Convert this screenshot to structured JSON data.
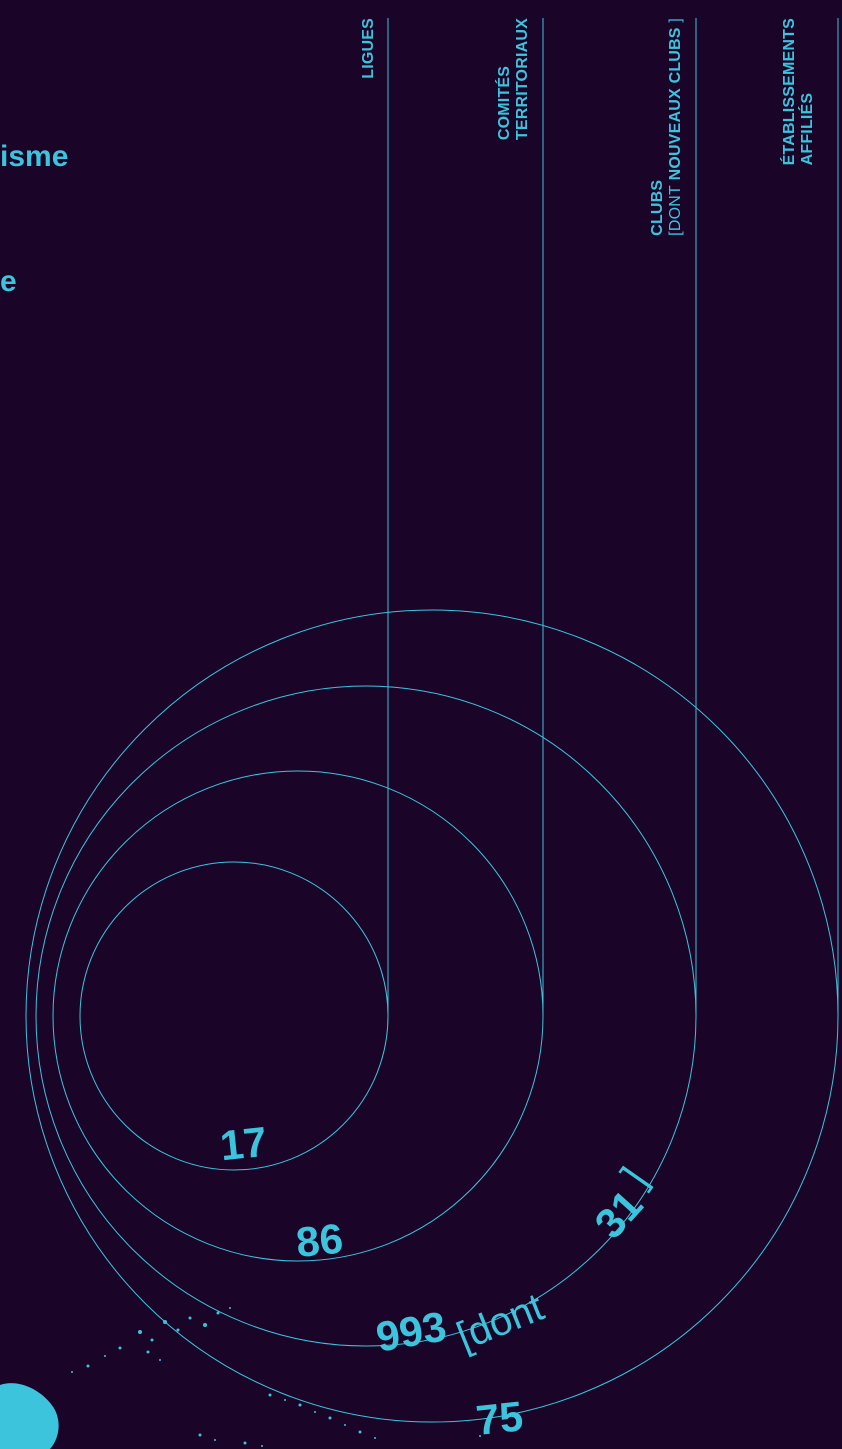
{
  "left_fragments": [
    "isme",
    "e"
  ],
  "labels": {
    "ligues": "LIGUES",
    "comites_1": "COMITÉS",
    "comites_2": "TERRITORIAUX",
    "clubs_1": "CLUBS",
    "clubs_bracket_open": "[",
    "clubs_dont": "DONT",
    "clubs_nouveaux": "NOUVEAUX CLUBS",
    "clubs_bracket_close": "]",
    "etab_1": "ÉTABLISSEMENTS",
    "etab_2": "AFFILIÉS"
  },
  "values": {
    "ligues": "17",
    "comites": "86",
    "clubs": "993",
    "clubs_dont": "[dont",
    "clubs_new": "31",
    "clubs_close": "]",
    "etab": "75"
  },
  "colors": {
    "background": "#1a0529",
    "accent": "#3cc4dc"
  }
}
